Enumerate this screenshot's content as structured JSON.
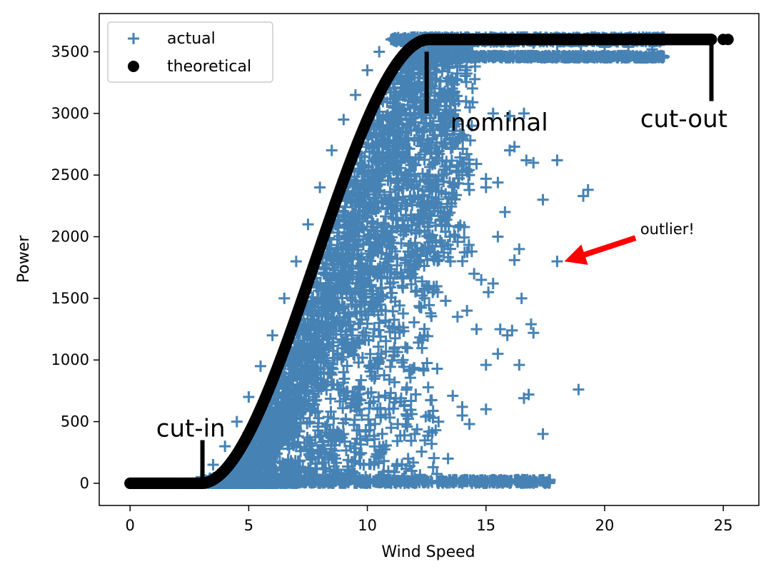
{
  "chart_data": {
    "type": "scatter",
    "title": "",
    "xlabel": "Wind Speed",
    "ylabel": "Power",
    "xlim": [
      -1.3,
      26.5
    ],
    "ylim": [
      -180,
      3810
    ],
    "xticks": [
      0,
      5,
      10,
      15,
      20,
      25
    ],
    "yticks": [
      0,
      500,
      1000,
      1500,
      2000,
      2500,
      3000,
      3500
    ],
    "grid": false,
    "legend": {
      "placement": "top-left",
      "entries": [
        {
          "name": "actual",
          "marker": "plus",
          "color": "#4682b4"
        },
        {
          "name": "theoretical",
          "marker": "circle",
          "color": "#000000"
        }
      ]
    },
    "series": [
      {
        "name": "actual",
        "marker": "plus",
        "color": "#4682b4",
        "cloud_points": [
          [
            3.2,
            0
          ],
          [
            4.0,
            0
          ],
          [
            5.0,
            0
          ],
          [
            6.0,
            0
          ],
          [
            7.0,
            0
          ],
          [
            8.0,
            0
          ],
          [
            9.0,
            0
          ],
          [
            10.0,
            0
          ],
          [
            11.0,
            0
          ],
          [
            12.0,
            0
          ],
          [
            13.0,
            0
          ],
          [
            14.0,
            0
          ],
          [
            15.0,
            0
          ],
          [
            16.0,
            0
          ],
          [
            16.5,
            0
          ],
          [
            17.0,
            0
          ],
          [
            17.5,
            0
          ],
          [
            3.0,
            50
          ],
          [
            3.5,
            150
          ],
          [
            4.0,
            300
          ],
          [
            4.5,
            500
          ],
          [
            5.0,
            700
          ],
          [
            5.5,
            950
          ],
          [
            6.0,
            1200
          ],
          [
            6.5,
            1500
          ],
          [
            7.0,
            1800
          ],
          [
            7.5,
            2100
          ],
          [
            8.0,
            2400
          ],
          [
            8.5,
            2700
          ],
          [
            9.0,
            2950
          ],
          [
            9.5,
            3150
          ],
          [
            10.0,
            3350
          ],
          [
            10.5,
            3500
          ],
          [
            11.0,
            3600
          ],
          [
            12.0,
            3620
          ],
          [
            13.0,
            3610
          ],
          [
            14.0,
            3600
          ],
          [
            15.0,
            3590
          ],
          [
            16.0,
            3580
          ],
          [
            17.0,
            3570
          ],
          [
            18.0,
            3560
          ],
          [
            19.0,
            3550
          ],
          [
            20.0,
            3540
          ],
          [
            21.0,
            3540
          ],
          [
            22.0,
            3520
          ],
          [
            22.5,
            3460
          ],
          [
            21.0,
            3460
          ],
          [
            20.0,
            3460
          ],
          [
            19.0,
            3460
          ],
          [
            18.0,
            3460
          ],
          [
            17.0,
            3460
          ],
          [
            16.0,
            3460
          ],
          [
            15.0,
            3460
          ],
          [
            14.0,
            3460
          ],
          [
            13.0,
            3460
          ],
          [
            6.0,
            200
          ],
          [
            7.0,
            300
          ],
          [
            8.0,
            250
          ],
          [
            9.0,
            400
          ],
          [
            10.0,
            350
          ],
          [
            11.0,
            450
          ],
          [
            12.0,
            400
          ],
          [
            13.0,
            500
          ],
          [
            14.0,
            550
          ],
          [
            15.0,
            600
          ],
          [
            7.5,
            900
          ],
          [
            8.5,
            800
          ],
          [
            9.5,
            1100
          ],
          [
            10.5,
            1300
          ],
          [
            11.5,
            1000
          ],
          [
            12.5,
            1600
          ],
          [
            13.5,
            1800
          ],
          [
            14.5,
            1700
          ],
          [
            15.5,
            2000
          ],
          [
            10.0,
            2200
          ],
          [
            11.0,
            2600
          ],
          [
            12.0,
            2900
          ],
          [
            13.0,
            3100
          ],
          [
            14.0,
            2500
          ],
          [
            15.0,
            2400
          ],
          [
            16.0,
            2700
          ],
          [
            17.0,
            2600
          ],
          [
            18.0,
            2620
          ]
        ],
        "points": [
          [
            18.0,
            1800
          ],
          [
            18.9,
            760
          ],
          [
            19.3,
            2380
          ],
          [
            19.1,
            2330
          ],
          [
            17.4,
            2300
          ],
          [
            16.4,
            1900
          ],
          [
            16.2,
            1810
          ],
          [
            17.0,
            1220
          ],
          [
            16.9,
            1290
          ],
          [
            16.4,
            960
          ],
          [
            16.6,
            690
          ],
          [
            17.4,
            400
          ],
          [
            16.8,
            720
          ],
          [
            16.5,
            1500
          ],
          [
            15.3,
            1620
          ],
          [
            15.1,
            1550
          ],
          [
            14.2,
            1400
          ],
          [
            13.8,
            1350
          ],
          [
            13.3,
            1480
          ],
          [
            12.6,
            1600
          ],
          [
            12.8,
            1820
          ],
          [
            14.8,
            1650
          ],
          [
            14.4,
            1880
          ],
          [
            14.6,
            1250
          ],
          [
            15.6,
            1250
          ],
          [
            15.9,
            1200
          ],
          [
            16.1,
            1240
          ],
          [
            15.0,
            960
          ],
          [
            15.5,
            1050
          ],
          [
            13.6,
            710
          ],
          [
            14.0,
            620
          ],
          [
            13.4,
            200
          ],
          [
            14.3,
            480
          ],
          [
            16.2,
            2730
          ],
          [
            16.7,
            2620
          ],
          [
            15.8,
            2200
          ],
          [
            15.5,
            2440
          ],
          [
            15.0,
            2470
          ],
          [
            14.3,
            2500
          ],
          [
            14.6,
            2590
          ],
          [
            16.6,
            3000
          ],
          [
            16.0,
            2980
          ],
          [
            15.3,
            3000
          ],
          [
            14.4,
            2900
          ],
          [
            13.2,
            2970
          ],
          [
            13.6,
            3120
          ],
          [
            12.7,
            2900
          ],
          [
            16.0,
            2700
          ]
        ]
      },
      {
        "name": "theoretical",
        "marker": "circle",
        "color": "#000000",
        "curve": {
          "cut_in": 3.0,
          "nominal_speed": 12.6,
          "rated_power": 3600,
          "cut_out": 25.2
        },
        "points": [
          [
            0,
            0
          ],
          [
            24.5,
            3600
          ],
          [
            25.0,
            3600
          ],
          [
            25.2,
            3600
          ]
        ]
      }
    ],
    "annotations": [
      {
        "text": "cut-in",
        "x": 1.1,
        "y": 380,
        "marker_line": {
          "x": 3.05,
          "y0": 0,
          "y1": 350
        }
      },
      {
        "text": "nominal",
        "x": 13.5,
        "y": 2860,
        "marker_line": {
          "x": 12.5,
          "y0": 3000,
          "y1": 3500
        }
      },
      {
        "text": "cut-out",
        "x": 21.5,
        "y": 2890,
        "marker_line": {
          "x": 24.5,
          "y0": 3100,
          "y1": 3600
        }
      },
      {
        "text": "outlier!",
        "x": 21.5,
        "y": 2020,
        "arrow": {
          "from": [
            21.3,
            1990
          ],
          "to": [
            18.3,
            1800
          ],
          "color": "#ff0000"
        }
      }
    ]
  }
}
